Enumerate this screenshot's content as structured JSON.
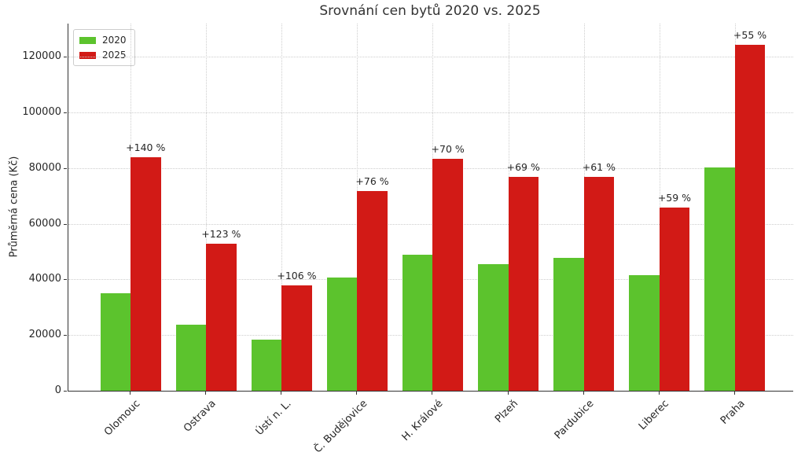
{
  "chart": {
    "title": "Srovnání cen bytů 2020 vs. 2025",
    "ylabel": "Průměrná cena (Kč)"
  },
  "chart_data": {
    "type": "bar",
    "title": "Srovnání cen bytů 2020 vs. 2025",
    "xlabel": "",
    "ylabel": "Průměrná cena (Kč)",
    "categories": [
      "Olomouc",
      "Ostrava",
      "Ústí n. L.",
      "Č. Budějovice",
      "H. Králové",
      "Plzeň",
      "Pardubice",
      "Liberec",
      "Praha"
    ],
    "series": [
      {
        "name": "2020",
        "color": "#5cc32d",
        "values": [
          35000,
          23700,
          18400,
          40800,
          49000,
          45600,
          47700,
          41500,
          80300
        ]
      },
      {
        "name": "2025",
        "color": "#d21a16",
        "values": [
          84000,
          52800,
          37900,
          71800,
          83300,
          77000,
          76800,
          66000,
          124500
        ]
      }
    ],
    "annotations": [
      "+140 %",
      "+123 %",
      "+106 %",
      "+76 %",
      "+70 %",
      "+69 %",
      "+61 %",
      "+59 %",
      "+55 %"
    ],
    "yticks": [
      0,
      20000,
      40000,
      60000,
      80000,
      100000,
      120000
    ],
    "ylim": [
      0,
      132000
    ],
    "grid": true,
    "grid_style": "dotted",
    "legend_position": "upper-left",
    "legend_labels": [
      "2020",
      "2025"
    ]
  }
}
